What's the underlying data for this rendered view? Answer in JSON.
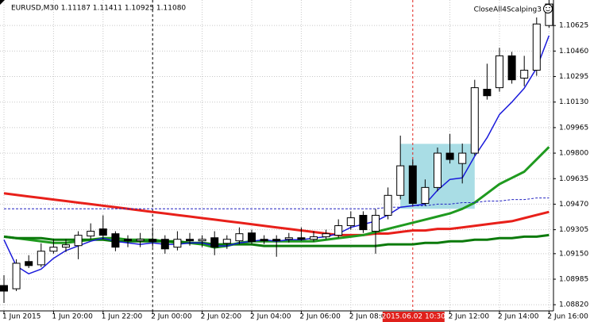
{
  "chart_data": {
    "type": "candlestick",
    "title": "EURUSD,M30  1.11187 1.11411 1.10925 1.11080",
    "indicator": "CloseAll4Scalping3",
    "categories": [
      "1 Jun 2015",
      null,
      null,
      null,
      "1 Jun 20:00",
      null,
      null,
      null,
      "1 Jun 22:00",
      null,
      null,
      null,
      "2 Jun 00:00",
      null,
      null,
      null,
      "2 Jun 02:00",
      null,
      null,
      null,
      "2 Jun 04:00",
      null,
      null,
      null,
      "2 Jun 06:00",
      null,
      null,
      null,
      "2 Jun 08:00",
      null,
      null,
      null,
      null,
      "2015.06.02 10:30",
      null,
      null,
      "2 Jun 12:00",
      null,
      null,
      null,
      "2 Jun 14:00",
      null,
      null,
      null,
      "2 Jun 16:00"
    ],
    "open": [
      1.08944,
      1.08923,
      1.09099,
      1.09078,
      1.09166,
      1.09192,
      1.09202,
      1.09264,
      1.0931,
      1.09279,
      1.09243,
      1.09233,
      1.09243,
      1.09243,
      1.09192,
      1.09243,
      1.09233,
      1.09253,
      1.09217,
      1.09233,
      1.09284,
      1.09243,
      1.09243,
      1.09243,
      1.09253,
      1.09243,
      1.09259,
      1.09269,
      1.09331,
      1.09398,
      1.09295,
      1.09398,
      1.09527,
      1.09718,
      1.09475,
      1.09578,
      1.098,
      1.09733,
      1.098,
      1.10213,
      1.10223,
      1.10429,
      1.10285,
      1.10336,
      1.10625
    ],
    "high": [
      1.09011,
      1.09114,
      1.0914,
      1.09217,
      1.09243,
      1.09243,
      1.09295,
      1.09346,
      1.09398,
      1.09295,
      1.09269,
      1.09284,
      1.0932,
      1.09269,
      1.09295,
      1.09284,
      1.09269,
      1.09295,
      1.09269,
      1.0932,
      1.09305,
      1.09269,
      1.09269,
      1.09284,
      1.0932,
      1.09295,
      1.09305,
      1.09372,
      1.09424,
      1.09424,
      1.09439,
      1.09578,
      1.09913,
      1.09759,
      1.0963,
      1.09836,
      1.09924,
      1.09862,
      1.10274,
      1.10378,
      1.10481,
      1.10455,
      1.10429,
      1.10677,
      1.1079
    ],
    "low": [
      1.08831,
      1.08908,
      1.09057,
      1.09063,
      1.0915,
      1.09161,
      1.09114,
      1.09243,
      1.09243,
      1.09166,
      1.09192,
      1.09192,
      1.09192,
      1.0915,
      1.09171,
      1.09202,
      1.09192,
      1.0914,
      1.09181,
      1.09212,
      1.09212,
      1.09212,
      1.0913,
      1.09222,
      1.09233,
      1.09228,
      1.09243,
      1.09253,
      1.09305,
      1.09284,
      1.0915,
      1.09372,
      1.09501,
      1.0946,
      1.0946,
      1.09553,
      1.09733,
      1.09604,
      1.09785,
      1.10146,
      1.10197,
      1.10249,
      1.10233,
      1.103,
      1.1061
    ],
    "close": [
      1.08908,
      1.09088,
      1.09073,
      1.09166,
      1.09192,
      1.09207,
      1.09269,
      1.09295,
      1.09269,
      1.09192,
      1.09233,
      1.09243,
      1.09228,
      1.09181,
      1.09243,
      1.09233,
      1.09243,
      1.09192,
      1.09243,
      1.09279,
      1.09228,
      1.09233,
      1.09233,
      1.09253,
      1.09243,
      1.09259,
      1.09279,
      1.09331,
      1.09382,
      1.09305,
      1.09398,
      1.09527,
      1.09718,
      1.09475,
      1.09578,
      1.098,
      1.09759,
      1.098,
      1.10223,
      1.10171,
      1.10429,
      1.10274,
      1.10336,
      1.10635,
      1.10764
    ],
    "up_color": "#ffffff",
    "down_color": "#000000",
    "wick_color": "#000000",
    "series": [
      {
        "color": "#e8201a",
        "width": 3,
        "dash": false,
        "values": [
          1.0954,
          1.0953,
          1.0952,
          1.0951,
          1.095,
          1.0949,
          1.0948,
          1.0947,
          1.0946,
          1.0945,
          1.0944,
          1.0943,
          1.0942,
          1.0941,
          1.094,
          1.0939,
          1.0938,
          1.0937,
          1.0936,
          1.0935,
          1.0934,
          1.0933,
          1.0932,
          1.0931,
          1.093,
          1.0929,
          1.0928,
          1.0927,
          1.0927,
          1.0927,
          1.0928,
          1.0928,
          1.0929,
          1.093,
          1.093,
          1.0931,
          1.0931,
          1.0932,
          1.0933,
          1.0934,
          1.0935,
          1.0936,
          1.0938,
          1.094,
          1.0942
        ]
      },
      {
        "color": "#1f9a1f",
        "width": 3,
        "dash": false,
        "values": [
          1.0926,
          1.0925,
          1.0924,
          1.0923,
          1.0922,
          1.0922,
          1.0923,
          1.0924,
          1.0925,
          1.0925,
          1.0924,
          1.0924,
          1.0924,
          1.0923,
          1.0922,
          1.0922,
          1.0921,
          1.0919,
          1.092,
          1.0922,
          1.0923,
          1.0923,
          1.0923,
          1.0923,
          1.0923,
          1.0923,
          1.0924,
          1.0925,
          1.0926,
          1.0927,
          1.0929,
          1.0931,
          1.0933,
          1.0935,
          1.0937,
          1.0939,
          1.0941,
          1.0944,
          1.0948,
          1.0954,
          1.096,
          1.0964,
          1.0968,
          1.0976,
          1.0984
        ]
      },
      {
        "color": "#0b7a0b",
        "width": 3,
        "dash": false,
        "values": [
          1.0926,
          1.0925,
          1.0925,
          1.0925,
          1.0924,
          1.0924,
          1.0924,
          1.0924,
          1.0924,
          1.0923,
          1.0923,
          1.0923,
          1.0923,
          1.0923,
          1.0923,
          1.0922,
          1.0922,
          1.0921,
          1.0921,
          1.0921,
          1.0921,
          1.092,
          1.092,
          1.092,
          1.092,
          1.092,
          1.092,
          1.092,
          1.092,
          1.092,
          1.092,
          1.0921,
          1.0921,
          1.0921,
          1.0922,
          1.0922,
          1.0923,
          1.0923,
          1.0924,
          1.0924,
          1.0925,
          1.0925,
          1.0926,
          1.0926,
          1.0927
        ]
      },
      {
        "color": "#2020c0",
        "width": 1,
        "dash": true,
        "values": [
          1.0944,
          1.0944,
          1.0944,
          1.0944,
          1.0944,
          1.0944,
          1.0944,
          1.0944,
          1.0944,
          1.0944,
          1.0944,
          1.0944,
          1.0944,
          1.0944,
          1.0944,
          1.0944,
          1.0944,
          1.0944,
          1.0944,
          1.0944,
          1.0944,
          1.0944,
          1.0944,
          1.0944,
          1.0944,
          1.0944,
          1.0944,
          1.0944,
          1.0944,
          1.0944,
          1.0944,
          1.0945,
          1.0945,
          1.0946,
          1.0946,
          1.0947,
          1.0947,
          1.0948,
          1.0948,
          1.0949,
          1.0949,
          1.095,
          1.095,
          1.0951,
          1.0951
        ]
      },
      {
        "color": "#1a1adb",
        "width": 1.5,
        "dash": false,
        "values": [
          1.0924,
          1.0907,
          1.0902,
          1.0905,
          1.0912,
          1.0917,
          1.092,
          1.0923,
          1.0925,
          1.0923,
          1.0922,
          1.0921,
          1.0922,
          1.0921,
          1.0921,
          1.0922,
          1.0922,
          1.092,
          1.092,
          1.0922,
          1.0923,
          1.0924,
          1.0923,
          1.0924,
          1.0924,
          1.0925,
          1.0926,
          1.0928,
          1.0932,
          1.0934,
          1.0936,
          1.094,
          1.0945,
          1.0946,
          1.0947,
          1.0956,
          1.0963,
          1.0964,
          1.0978,
          1.099,
          1.1005,
          1.1013,
          1.1022,
          1.1035,
          1.1056
        ]
      }
    ],
    "box": {
      "from": 32,
      "to": 38,
      "top": 1.0986,
      "bottom": 1.0944,
      "color": "#a9dde5"
    },
    "separator": {
      "category": 12,
      "color": "#000000"
    },
    "crosshair": {
      "category": 33,
      "color": "#e0201b"
    },
    "ylim": [
      1.0878,
      1.1079
    ],
    "yticks": [
      1.10625,
      {
        "value": 1.1046,
        "label": "1.10460"
      },
      1.10295,
      {
        "value": 1.1013,
        "label": "1.10130"
      },
      1.09965,
      {
        "value": 1.098,
        "label": "1.09800"
      },
      1.09635,
      {
        "value": 1.0947,
        "label": "1.09470"
      },
      1.09305,
      {
        "value": 1.0915,
        "label": "1.09150"
      },
      1.08985,
      {
        "value": 1.0882,
        "label": "1.08820"
      }
    ],
    "grid": true
  }
}
